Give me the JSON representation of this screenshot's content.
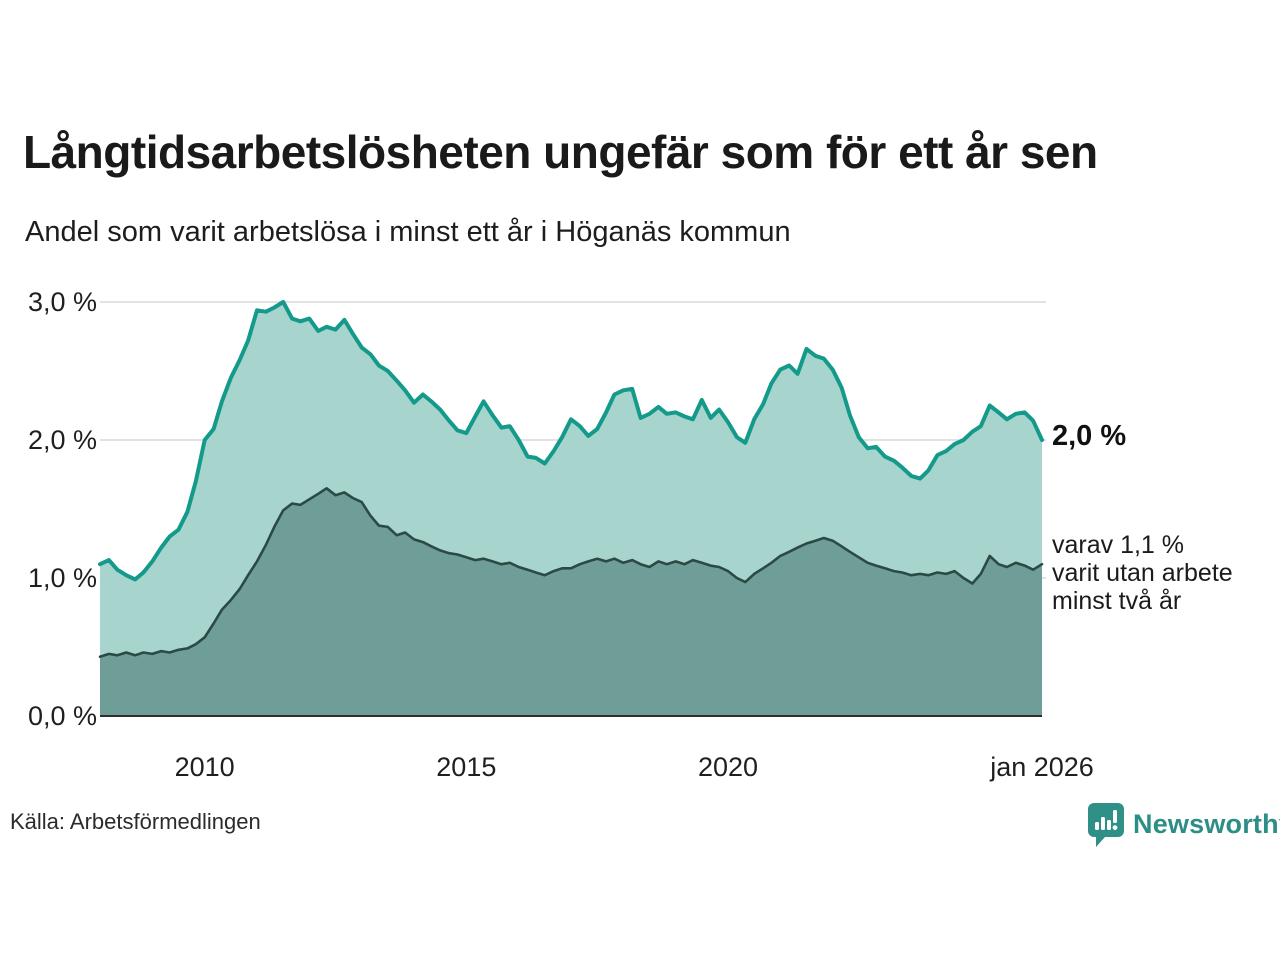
{
  "header": {
    "title": "Långtidsarbetslösheten ungefär som för ett år sen",
    "subtitle": "Andel som varit arbetslösa i minst ett år i Höganäs kommun"
  },
  "footer": {
    "source": "Källa: Arbetsförmedlingen",
    "branding": {
      "name": "Newsworthy",
      "icon": "newsworthy-speech-bubble-bar-chart-icon",
      "color": "#2e9087"
    }
  },
  "chart_data": {
    "type": "area",
    "title": "Långtidsarbetslösheten ungefär som för ett år sen",
    "subtitle": "Andel som varit arbetslösa i minst ett år i Höganäs kommun",
    "x_domain": [
      2008,
      2026
    ],
    "y_domain": [
      0,
      3
    ],
    "grid": "horizontal",
    "y_ticks": [
      {
        "value": 3,
        "label": "3,0 %"
      },
      {
        "value": 2,
        "label": "2,0 %"
      },
      {
        "value": 1,
        "label": "1,0 %"
      },
      {
        "value": 0,
        "label": "0,0 %"
      }
    ],
    "x_ticks": [
      {
        "value": 2010,
        "label": "2010"
      },
      {
        "value": 2015,
        "label": "2015"
      },
      {
        "value": 2020,
        "label": "2020"
      },
      {
        "value": 2026,
        "label": "jan 2026"
      }
    ],
    "series": [
      {
        "name": "Arbetslösa minst ett år (totalt)",
        "line_color": "#149a8b",
        "fill_color": "#a7d5ce",
        "end_value": "2,0 %"
      },
      {
        "name": "Varav utan arbete minst två år",
        "line_color": "#2c4a45",
        "fill_color": "#6f9e98",
        "end_value": "1,1 %",
        "end_label_lines": [
          "varav 1,1 %",
          "varit utan arbete",
          "minst två år"
        ]
      }
    ],
    "points_format": [
      "year_decimal",
      "total_pct",
      "two_year_pct"
    ],
    "points": [
      [
        2008.0,
        1.1,
        0.43
      ],
      [
        2008.17,
        1.13,
        0.45
      ],
      [
        2008.33,
        1.06,
        0.44
      ],
      [
        2008.5,
        1.02,
        0.46
      ],
      [
        2008.67,
        0.99,
        0.44
      ],
      [
        2008.83,
        1.04,
        0.46
      ],
      [
        2009.0,
        1.12,
        0.45
      ],
      [
        2009.17,
        1.22,
        0.47
      ],
      [
        2009.33,
        1.3,
        0.46
      ],
      [
        2009.5,
        1.35,
        0.48
      ],
      [
        2009.67,
        1.48,
        0.49
      ],
      [
        2009.83,
        1.7,
        0.52
      ],
      [
        2010.0,
        2.0,
        0.57
      ],
      [
        2010.17,
        2.08,
        0.67
      ],
      [
        2010.33,
        2.28,
        0.77
      ],
      [
        2010.5,
        2.45,
        0.84
      ],
      [
        2010.67,
        2.58,
        0.92
      ],
      [
        2010.83,
        2.72,
        1.02
      ],
      [
        2011.0,
        2.94,
        1.12
      ],
      [
        2011.17,
        2.93,
        1.24
      ],
      [
        2011.33,
        2.96,
        1.37
      ],
      [
        2011.5,
        3.0,
        1.49
      ],
      [
        2011.67,
        2.88,
        1.54
      ],
      [
        2011.83,
        2.86,
        1.53
      ],
      [
        2012.0,
        2.88,
        1.57
      ],
      [
        2012.17,
        2.79,
        1.61
      ],
      [
        2012.33,
        2.82,
        1.65
      ],
      [
        2012.5,
        2.8,
        1.6
      ],
      [
        2012.67,
        2.87,
        1.62
      ],
      [
        2012.83,
        2.77,
        1.58
      ],
      [
        2013.0,
        2.67,
        1.55
      ],
      [
        2013.17,
        2.62,
        1.45
      ],
      [
        2013.33,
        2.54,
        1.38
      ],
      [
        2013.5,
        2.5,
        1.37
      ],
      [
        2013.67,
        2.43,
        1.31
      ],
      [
        2013.83,
        2.36,
        1.33
      ],
      [
        2014.0,
        2.27,
        1.28
      ],
      [
        2014.17,
        2.33,
        1.26
      ],
      [
        2014.33,
        2.28,
        1.23
      ],
      [
        2014.5,
        2.22,
        1.2
      ],
      [
        2014.67,
        2.14,
        1.18
      ],
      [
        2014.83,
        2.07,
        1.17
      ],
      [
        2015.0,
        2.05,
        1.15
      ],
      [
        2015.17,
        2.17,
        1.13
      ],
      [
        2015.33,
        2.28,
        1.14
      ],
      [
        2015.5,
        2.18,
        1.12
      ],
      [
        2015.67,
        2.09,
        1.1
      ],
      [
        2015.83,
        2.1,
        1.11
      ],
      [
        2016.0,
        2.0,
        1.08
      ],
      [
        2016.17,
        1.88,
        1.06
      ],
      [
        2016.33,
        1.87,
        1.04
      ],
      [
        2016.5,
        1.83,
        1.02
      ],
      [
        2016.67,
        1.92,
        1.05
      ],
      [
        2016.83,
        2.02,
        1.07
      ],
      [
        2017.0,
        2.15,
        1.07
      ],
      [
        2017.17,
        2.1,
        1.1
      ],
      [
        2017.33,
        2.03,
        1.12
      ],
      [
        2017.5,
        2.08,
        1.14
      ],
      [
        2017.67,
        2.2,
        1.12
      ],
      [
        2017.83,
        2.33,
        1.14
      ],
      [
        2018.0,
        2.36,
        1.11
      ],
      [
        2018.17,
        2.37,
        1.13
      ],
      [
        2018.33,
        2.16,
        1.1
      ],
      [
        2018.5,
        2.19,
        1.08
      ],
      [
        2018.67,
        2.24,
        1.12
      ],
      [
        2018.83,
        2.19,
        1.1
      ],
      [
        2019.0,
        2.2,
        1.12
      ],
      [
        2019.17,
        2.17,
        1.1
      ],
      [
        2019.33,
        2.15,
        1.13
      ],
      [
        2019.5,
        2.29,
        1.11
      ],
      [
        2019.67,
        2.16,
        1.09
      ],
      [
        2019.83,
        2.22,
        1.08
      ],
      [
        2020.0,
        2.13,
        1.05
      ],
      [
        2020.17,
        2.02,
        1.0
      ],
      [
        2020.33,
        1.98,
        0.97
      ],
      [
        2020.5,
        2.15,
        1.03
      ],
      [
        2020.67,
        2.26,
        1.07
      ],
      [
        2020.83,
        2.41,
        1.11
      ],
      [
        2021.0,
        2.51,
        1.16
      ],
      [
        2021.17,
        2.54,
        1.19
      ],
      [
        2021.33,
        2.48,
        1.22
      ],
      [
        2021.5,
        2.66,
        1.25
      ],
      [
        2021.67,
        2.61,
        1.27
      ],
      [
        2021.83,
        2.59,
        1.29
      ],
      [
        2022.0,
        2.51,
        1.27
      ],
      [
        2022.17,
        2.38,
        1.23
      ],
      [
        2022.33,
        2.18,
        1.19
      ],
      [
        2022.5,
        2.02,
        1.15
      ],
      [
        2022.67,
        1.94,
        1.11
      ],
      [
        2022.83,
        1.95,
        1.09
      ],
      [
        2023.0,
        1.88,
        1.07
      ],
      [
        2023.17,
        1.85,
        1.05
      ],
      [
        2023.33,
        1.8,
        1.04
      ],
      [
        2023.5,
        1.74,
        1.02
      ],
      [
        2023.67,
        1.72,
        1.03
      ],
      [
        2023.83,
        1.78,
        1.02
      ],
      [
        2024.0,
        1.89,
        1.04
      ],
      [
        2024.17,
        1.92,
        1.03
      ],
      [
        2024.33,
        1.97,
        1.05
      ],
      [
        2024.5,
        2.0,
        1.0
      ],
      [
        2024.67,
        2.06,
        0.96
      ],
      [
        2024.83,
        2.1,
        1.03
      ],
      [
        2025.0,
        2.25,
        1.16
      ],
      [
        2025.17,
        2.2,
        1.1
      ],
      [
        2025.33,
        2.15,
        1.08
      ],
      [
        2025.5,
        2.19,
        1.11
      ],
      [
        2025.67,
        2.2,
        1.09
      ],
      [
        2025.83,
        2.14,
        1.06
      ],
      [
        2026.0,
        2.0,
        1.1
      ]
    ],
    "annotations": {
      "end_total": "2,0 %",
      "end_two_year": "varav 1,1 % varit utan arbete minst två år"
    },
    "colors": {
      "grid": "#d9d9d9",
      "baseline": "#2e2e2e",
      "total_line": "#149a8b",
      "total_fill": "#a7d5ce",
      "two_year_line": "#2c4a45",
      "two_year_fill": "#6f9e98"
    }
  }
}
